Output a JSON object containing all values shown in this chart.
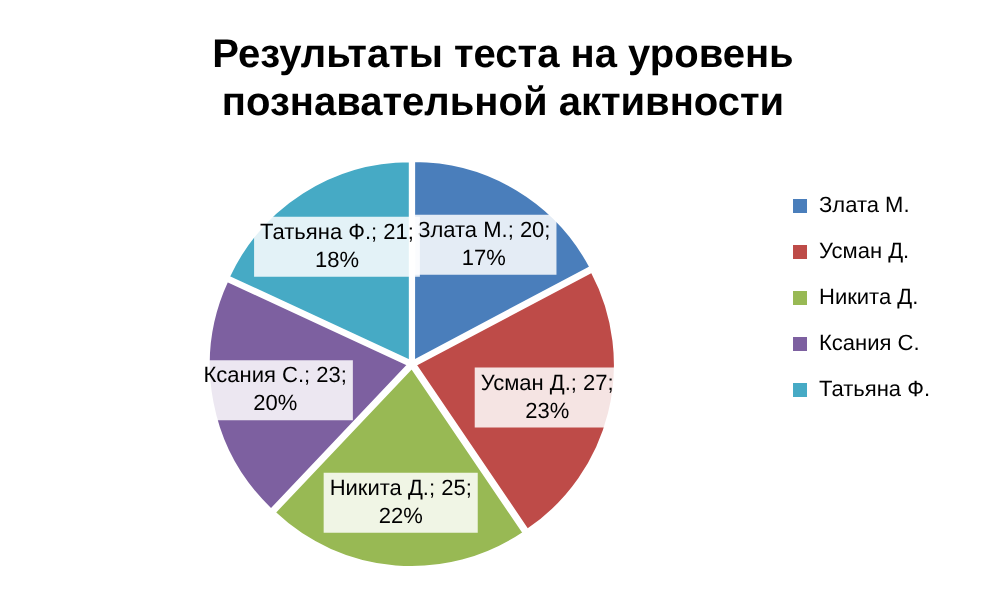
{
  "chart_data": {
    "type": "pie",
    "title": "Результаты теста на уровень познавательной активности",
    "categories": [
      "Злата М.",
      "Усман Д.",
      "Никита Д.",
      "Ксания С.",
      "Татьяна Ф."
    ],
    "values": [
      20,
      27,
      25,
      23,
      21
    ],
    "colors": [
      "#4a7ebb",
      "#be4b48",
      "#98b954",
      "#7d60a0",
      "#46aac5"
    ],
    "value_labels": [
      "Злата М.; 20; 17%",
      "Усман Д.; 27; 23%",
      "Никита Д.; 25; 22%",
      "Ксания С.; 23; 20%",
      "Татьяна Ф.; 21; 18%"
    ],
    "legend": "right"
  }
}
